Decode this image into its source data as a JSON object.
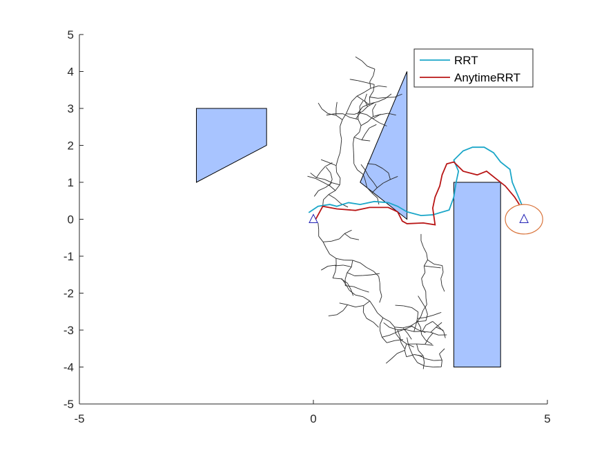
{
  "chart_data": {
    "type": "line",
    "xlim": [
      -5,
      5
    ],
    "ylim": [
      -5,
      5
    ],
    "x_ticks": [
      "-5",
      "0",
      "5"
    ],
    "y_ticks": [
      "5",
      "4",
      "3",
      "2",
      "1",
      "0",
      "-1",
      "-2",
      "-3",
      "-4",
      "-5"
    ],
    "grid": false,
    "legend_position": "top-right",
    "colors": {
      "rrt": "#1aa6c8",
      "anytime_rrt": "#b81414",
      "tree": "#262626",
      "obstacle_fill": "#a8c4ff",
      "start_marker": "#1f1fb4",
      "goal_circle": "#d9733a"
    },
    "series": [
      {
        "name": "RRT",
        "points": [
          [
            -0.1,
            0.18
          ],
          [
            0.1,
            0.35
          ],
          [
            0.35,
            0.4
          ],
          [
            0.5,
            0.35
          ],
          [
            0.75,
            0.45
          ],
          [
            1.0,
            0.4
          ],
          [
            1.3,
            0.48
          ],
          [
            1.6,
            0.45
          ],
          [
            1.8,
            0.35
          ],
          [
            2.0,
            0.2
          ],
          [
            2.3,
            0.1
          ],
          [
            2.55,
            0.12
          ],
          [
            2.9,
            0.25
          ],
          [
            3.0,
            0.6
          ],
          [
            3.05,
            1.0
          ],
          [
            3.1,
            1.3
          ],
          [
            3.0,
            1.6
          ],
          [
            3.2,
            1.85
          ],
          [
            3.4,
            1.95
          ],
          [
            3.65,
            1.95
          ],
          [
            3.85,
            1.8
          ],
          [
            4.0,
            1.55
          ],
          [
            4.2,
            1.35
          ],
          [
            4.25,
            1.0
          ],
          [
            4.35,
            0.7
          ],
          [
            4.45,
            0.4
          ]
        ]
      },
      {
        "name": "AnytimeRRT",
        "points": [
          [
            0.05,
            0.0
          ],
          [
            0.2,
            0.35
          ],
          [
            0.5,
            0.28
          ],
          [
            0.9,
            0.24
          ],
          [
            1.2,
            0.32
          ],
          [
            1.6,
            0.32
          ],
          [
            1.8,
            0.2
          ],
          [
            1.9,
            -0.05
          ],
          [
            2.0,
            -0.12
          ],
          [
            2.35,
            -0.1
          ],
          [
            2.6,
            -0.15
          ],
          [
            2.55,
            0.3
          ],
          [
            2.6,
            0.6
          ],
          [
            2.7,
            0.9
          ],
          [
            2.75,
            1.2
          ],
          [
            2.85,
            1.5
          ],
          [
            3.0,
            1.55
          ],
          [
            3.2,
            1.3
          ],
          [
            3.5,
            1.2
          ],
          [
            3.7,
            1.3
          ],
          [
            3.9,
            1.1
          ],
          [
            4.1,
            0.9
          ],
          [
            4.3,
            0.6
          ],
          [
            4.4,
            0.4
          ]
        ]
      }
    ],
    "obstacles": [
      [
        [
          -2.5,
          1
        ],
        [
          -2.5,
          3
        ],
        [
          -1,
          3
        ],
        [
          -1,
          2
        ]
      ],
      [
        [
          1,
          1
        ],
        [
          2,
          4
        ],
        [
          2,
          0
        ]
      ],
      [
        [
          3,
          1
        ],
        [
          4,
          1
        ],
        [
          4,
          -4
        ],
        [
          3,
          -4
        ]
      ]
    ],
    "start": [
      0,
      0
    ],
    "goal": [
      4.5,
      0
    ],
    "goal_radius": 0.4
  }
}
